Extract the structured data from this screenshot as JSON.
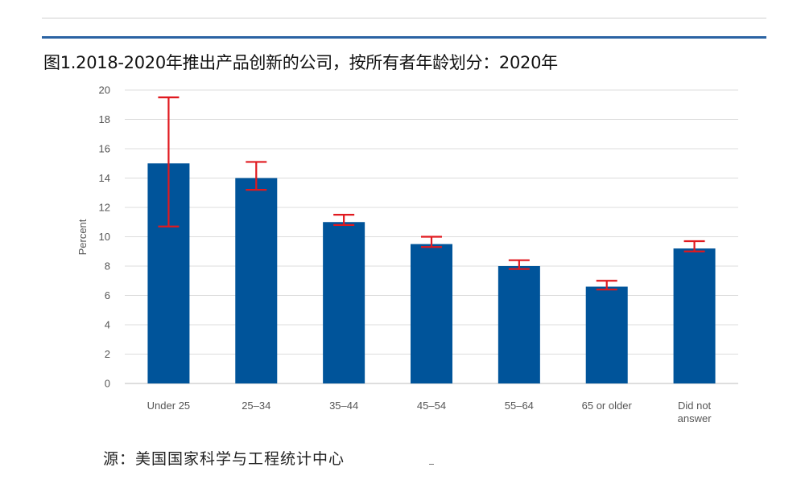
{
  "title": "图1.2018-2020年推出产品创新的公司，按所有者年龄划分：2020年",
  "source": "源：美国国家科学与工程统计中心",
  "colors": {
    "bar": "#00549a",
    "error": "#e0191f",
    "grid": "#dcdcdc",
    "rule": "#2b63a3"
  },
  "chart_data": {
    "type": "bar",
    "categories": [
      [
        "Under 25"
      ],
      [
        "25–34"
      ],
      [
        "35–44"
      ],
      [
        "45–54"
      ],
      [
        "55–64"
      ],
      [
        "65 or older"
      ],
      [
        "Did not",
        "answer"
      ]
    ],
    "values": [
      15.0,
      14.0,
      11.0,
      9.5,
      8.0,
      6.6,
      9.2
    ],
    "error_low": [
      10.7,
      13.2,
      10.8,
      9.3,
      7.8,
      6.4,
      9.0
    ],
    "error_high": [
      19.5,
      15.1,
      11.5,
      10.0,
      8.4,
      7.0,
      9.7
    ],
    "ylabel": "Percent",
    "xlabel": "",
    "ylim": [
      0,
      20
    ],
    "yticks": [
      0,
      2,
      4,
      6,
      8,
      10,
      12,
      14,
      16,
      18,
      20
    ],
    "grid": true,
    "legend": "none"
  }
}
